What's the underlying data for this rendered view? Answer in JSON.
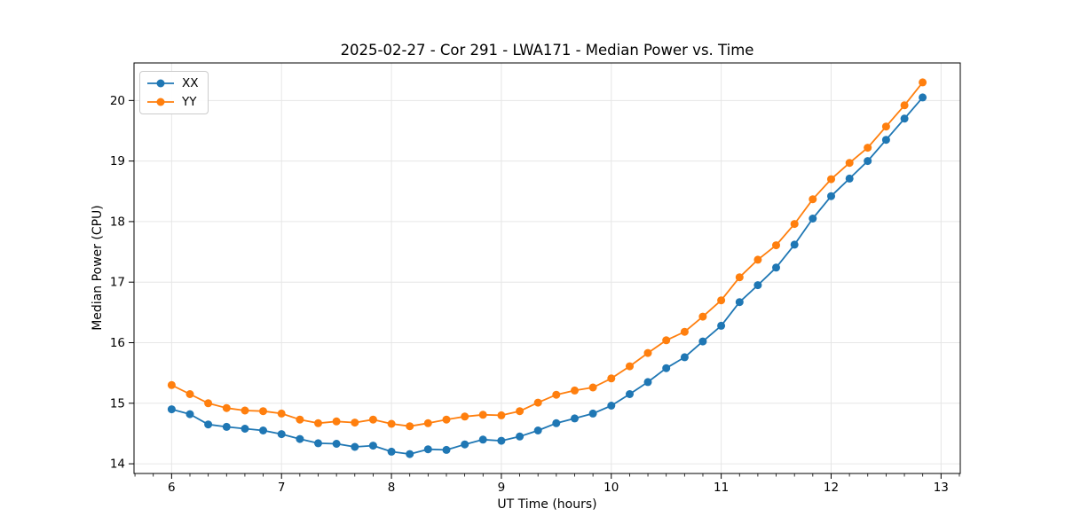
{
  "chart_data": {
    "type": "line",
    "title": "2025-02-27 - Cor 291 - LWA171 - Median Power vs. Time",
    "xlabel": "UT Time (hours)",
    "ylabel": "Median Power (CPU)",
    "xlim": [
      5.658,
      13.175
    ],
    "ylim": [
      13.84,
      20.62
    ],
    "x_major_ticks": [
      6,
      7,
      8,
      9,
      10,
      11,
      12,
      13
    ],
    "x_major_tick_labels": [
      "6",
      "7",
      "8",
      "9",
      "10",
      "11",
      "12",
      "13"
    ],
    "x_minor_tick_step_hours": 0.166667,
    "y_major_ticks": [
      14,
      15,
      16,
      17,
      18,
      19,
      20
    ],
    "y_major_tick_labels": [
      "14",
      "15",
      "16",
      "17",
      "18",
      "19",
      "20"
    ],
    "grid": true,
    "legend_position": "upper left",
    "marker": "circle",
    "x": [
      6.0,
      6.167,
      6.333,
      6.5,
      6.667,
      6.833,
      7.0,
      7.167,
      7.333,
      7.5,
      7.667,
      7.833,
      8.0,
      8.167,
      8.333,
      8.5,
      8.667,
      8.833,
      9.0,
      9.167,
      9.333,
      9.5,
      9.667,
      9.833,
      10.0,
      10.167,
      10.333,
      10.5,
      10.667,
      10.833,
      11.0,
      11.167,
      11.333,
      11.5,
      11.667,
      11.833,
      12.0,
      12.167,
      12.333,
      12.5,
      12.667,
      12.833
    ],
    "series": [
      {
        "name": "XX",
        "color": "#1f77b4",
        "values": [
          14.9,
          14.82,
          14.65,
          14.61,
          14.58,
          14.55,
          14.49,
          14.41,
          14.34,
          14.33,
          14.28,
          14.3,
          14.2,
          14.16,
          14.24,
          14.23,
          14.32,
          14.4,
          14.38,
          14.45,
          14.55,
          14.67,
          14.75,
          14.83,
          14.96,
          15.15,
          15.35,
          15.58,
          15.76,
          16.02,
          16.28,
          16.67,
          16.95,
          17.24,
          17.62,
          18.05,
          18.42,
          18.71,
          19.0,
          19.35,
          19.7,
          20.05
        ]
      },
      {
        "name": "YY",
        "color": "#ff7f0e",
        "values": [
          15.3,
          15.15,
          15.0,
          14.92,
          14.88,
          14.87,
          14.83,
          14.73,
          14.67,
          14.7,
          14.68,
          14.73,
          14.66,
          14.62,
          14.67,
          14.73,
          14.78,
          14.81,
          14.8,
          14.87,
          15.01,
          15.14,
          15.21,
          15.26,
          15.41,
          15.61,
          15.83,
          16.04,
          16.18,
          16.43,
          16.7,
          17.08,
          17.37,
          17.61,
          17.96,
          18.37,
          18.7,
          18.97,
          19.22,
          19.57,
          19.92,
          20.3
        ]
      }
    ]
  },
  "colors": {
    "grid": "#e6e6e6",
    "spine": "#000000",
    "tick": "#000000",
    "text": "#000000",
    "background": "#ffffff",
    "legend_border": "#cccccc"
  }
}
